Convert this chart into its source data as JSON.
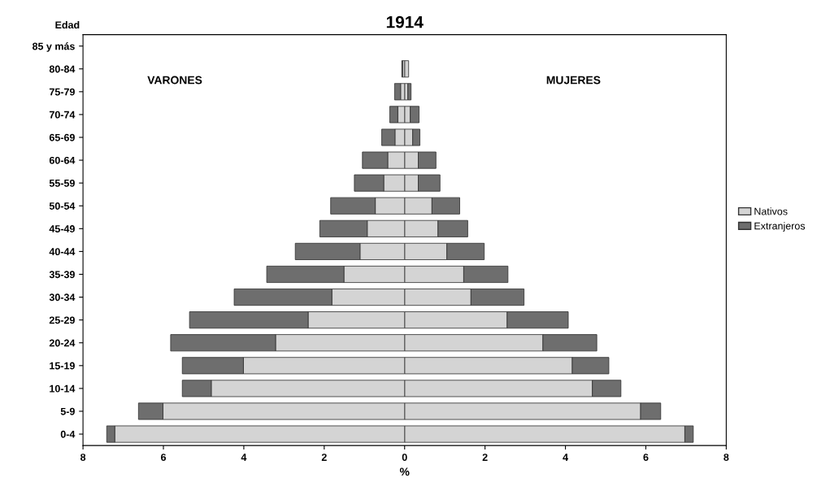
{
  "chart_data": {
    "type": "bar",
    "orientation": "horizontal",
    "stacked": true,
    "title": "1914",
    "xlabel": "%",
    "ylabel": "Edad",
    "categories": [
      "85 y más",
      "80-84",
      "75-79",
      "70-74",
      "65-69",
      "60-64",
      "55-59",
      "50-54",
      "45-49",
      "40-44",
      "35-39",
      "30-34",
      "25-29",
      "20-24",
      "15-19",
      "10-14",
      "5-9",
      "0-4"
    ],
    "series": [
      {
        "name": "Nativos",
        "color": "#d4d4d4",
        "values": [
          0,
          0.1,
          0.08,
          0.14,
          0.2,
          0.34,
          0.34,
          0.68,
          0.83,
          1.05,
          1.47,
          1.65,
          2.55,
          3.44,
          4.17,
          4.67,
          5.87,
          6.97
        ]
      },
      {
        "name": "Extranjeros",
        "color": "#6e6e6e",
        "values": [
          0,
          0,
          0.08,
          0.22,
          0.18,
          0.44,
          0.54,
          0.69,
          0.74,
          0.93,
          1.1,
          1.32,
          1.52,
          1.34,
          0.91,
          0.71,
          0.5,
          0.21
        ]
      },
      {
        "color": "#d4d4d4",
        "values": [
          0,
          -0.05,
          -0.1,
          -0.17,
          -0.24,
          -0.42,
          -0.52,
          -0.73,
          -0.93,
          -1.11,
          -1.51,
          -1.81,
          -2.4,
          -3.21,
          -4.01,
          -4.81,
          -6.01,
          -7.21
        ]
      },
      {
        "color": "#6e6e6e",
        "values": [
          0,
          -0.02,
          -0.15,
          -0.2,
          -0.33,
          -0.63,
          -0.73,
          -1.11,
          -1.18,
          -1.61,
          -1.92,
          -2.43,
          -2.95,
          -2.61,
          -1.52,
          -0.72,
          -0.61,
          -0.2
        ]
      }
    ],
    "xlim": [
      -8,
      8
    ],
    "xticks": [
      {
        "value": -8,
        "label": "8"
      },
      {
        "value": -6,
        "label": "6"
      },
      {
        "value": -4,
        "label": "4"
      },
      {
        "value": -2,
        "label": "2"
      },
      0,
      2,
      4,
      6,
      8
    ],
    "annotations": [
      "VARONES",
      "MUJERES"
    ],
    "legend": "right",
    "grid": false
  }
}
